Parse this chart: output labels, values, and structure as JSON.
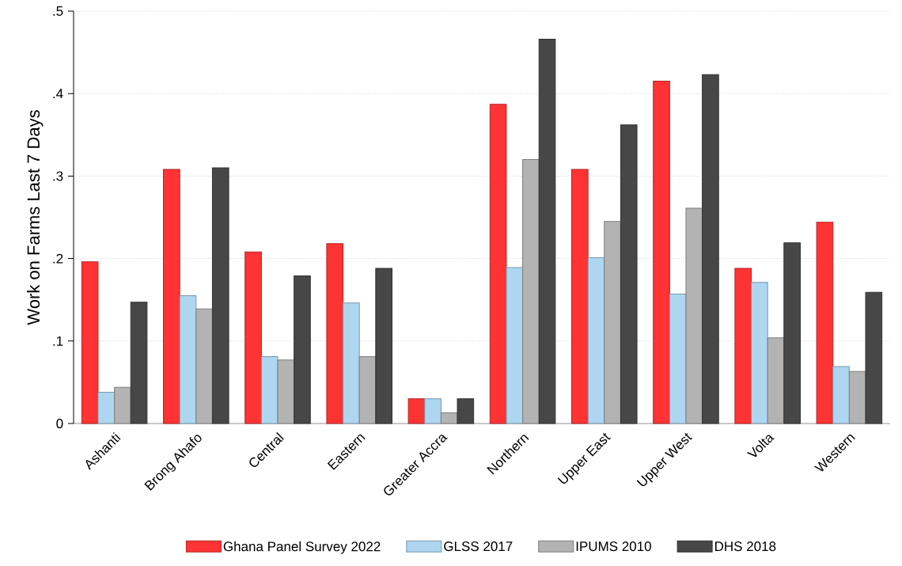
{
  "chart_data": {
    "type": "bar",
    "ylabel": "Work on Farms Last 7 Days",
    "categories": [
      "Ashanti",
      "Brong Ahafo",
      "Central",
      "Eastern",
      "Greater Accra",
      "Northern",
      "Upper East",
      "Upper West",
      "Volta",
      "Western"
    ],
    "series": [
      {
        "name": "Ghana Panel Survey 2022",
        "color": "#ff3333",
        "values": [
          0.196,
          0.308,
          0.208,
          0.218,
          0.03,
          0.387,
          0.308,
          0.415,
          0.188,
          0.244
        ]
      },
      {
        "name": "GLSS 2017",
        "color": "#aed6f1",
        "values": [
          0.038,
          0.155,
          0.081,
          0.146,
          0.03,
          0.189,
          0.201,
          0.157,
          0.171,
          0.069
        ]
      },
      {
        "name": "IPUMS 2010",
        "color": "#b3b3b3",
        "values": [
          0.044,
          0.139,
          0.077,
          0.081,
          0.013,
          0.32,
          0.245,
          0.261,
          0.104,
          0.063
        ]
      },
      {
        "name": "DHS 2018",
        "color": "#474747",
        "values": [
          0.147,
          0.31,
          0.179,
          0.188,
          0.03,
          0.466,
          0.362,
          0.423,
          0.219,
          0.159
        ]
      }
    ],
    "ylim": [
      0,
      0.5
    ],
    "yticks": [
      0,
      {
        "value": 0.1,
        "label": ".1"
      },
      {
        "value": 0.2,
        "label": ".2"
      },
      {
        "value": 0.3,
        "label": ".3"
      },
      {
        "value": 0.4,
        "label": ".4"
      },
      {
        "value": 0.5,
        "label": ".5"
      }
    ],
    "grid": "y",
    "legend": "bottom"
  }
}
